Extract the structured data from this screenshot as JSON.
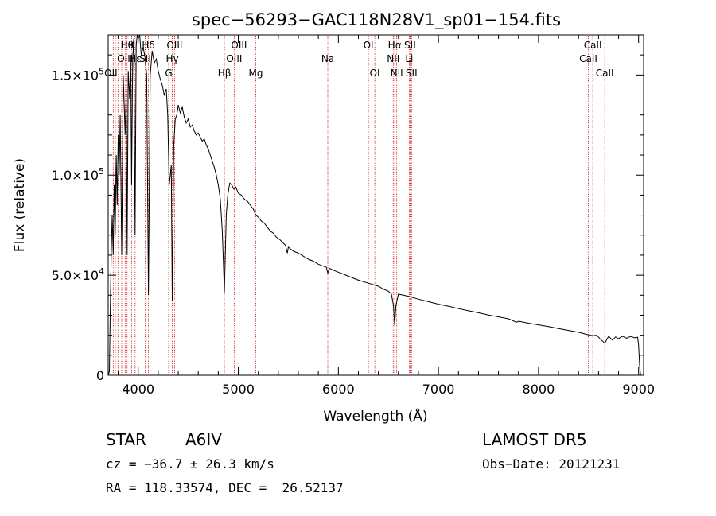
{
  "chart_data": {
    "type": "line",
    "title": "spec−56293−GAC118N28V1_sp01−154.fits",
    "xlabel": "Wavelength (Å)",
    "ylabel": "Flux (relative)",
    "xlim": [
      3700,
      9050
    ],
    "ylim": [
      0,
      170000
    ],
    "xticks": [
      {
        "value": 4000,
        "label": "4000"
      },
      {
        "value": 5000,
        "label": "5000"
      },
      {
        "value": 6000,
        "label": "6000"
      },
      {
        "value": 7000,
        "label": "7000"
      },
      {
        "value": 8000,
        "label": "8000"
      },
      {
        "value": 9000,
        "label": "9000"
      }
    ],
    "yticks": [
      {
        "value": 0,
        "mant": "0",
        "exp": ""
      },
      {
        "value": 50000,
        "mant": "5.0×10",
        "exp": "4"
      },
      {
        "value": 100000,
        "mant": "1.0×10",
        "exp": "5"
      },
      {
        "value": 150000,
        "mant": "1.5×10",
        "exp": "5"
      }
    ],
    "line_color": "#000000",
    "marker_color": "#cc0000",
    "lines": [
      {
        "wave": 3727,
        "label": "OII",
        "row": 3
      },
      {
        "wave": 3750,
        "label": "",
        "row": 0
      },
      {
        "wave": 3771,
        "label": "",
        "row": 0
      },
      {
        "wave": 3798,
        "label": "",
        "row": 0
      },
      {
        "wave": 3835,
        "label": "",
        "row": 0
      },
      {
        "wave": 3869,
        "label": "OIII",
        "row": 2
      },
      {
        "wave": 3889,
        "label": "Hθ",
        "row": 1
      },
      {
        "wave": 3934,
        "label": "K",
        "row": 1
      },
      {
        "wave": 3969,
        "label": "Hε",
        "row": 2
      },
      {
        "wave": 4070,
        "label": "SII",
        "row": 2
      },
      {
        "wave": 4102,
        "label": "Hδ",
        "row": 1
      },
      {
        "wave": 4304,
        "label": "G",
        "row": 3
      },
      {
        "wave": 4340,
        "label": "Hγ",
        "row": 2
      },
      {
        "wave": 4363,
        "label": "OIII",
        "row": 1
      },
      {
        "wave": 4861,
        "label": "Hβ",
        "row": 3
      },
      {
        "wave": 4959,
        "label": "OIII",
        "row": 2
      },
      {
        "wave": 5007,
        "label": "OIII",
        "row": 1
      },
      {
        "wave": 5175,
        "label": "Mg",
        "row": 3
      },
      {
        "wave": 5894,
        "label": "Na",
        "row": 2
      },
      {
        "wave": 6300,
        "label": "OI",
        "row": 1
      },
      {
        "wave": 6364,
        "label": "OI",
        "row": 3
      },
      {
        "wave": 6548,
        "label": "NII",
        "row": 2
      },
      {
        "wave": 6563,
        "label": "Hα",
        "row": 1
      },
      {
        "wave": 6583,
        "label": "NII",
        "row": 3
      },
      {
        "wave": 6708,
        "label": "Li",
        "row": 2
      },
      {
        "wave": 6716,
        "label": "SII",
        "row": 1
      },
      {
        "wave": 6731,
        "label": "SII",
        "row": 3
      },
      {
        "wave": 8498,
        "label": "CaII",
        "row": 2
      },
      {
        "wave": 8542,
        "label": "CaII",
        "row": 1
      },
      {
        "wave": 8662,
        "label": "CaII",
        "row": 3
      }
    ],
    "spectrum": [
      [
        3700,
        0
      ],
      [
        3712,
        2000
      ],
      [
        3720,
        30000
      ],
      [
        3730,
        60000
      ],
      [
        3740,
        80000
      ],
      [
        3750,
        60000
      ],
      [
        3760,
        95000
      ],
      [
        3770,
        70000
      ],
      [
        3780,
        110000
      ],
      [
        3790,
        85000
      ],
      [
        3800,
        120000
      ],
      [
        3810,
        100000
      ],
      [
        3820,
        130000
      ],
      [
        3835,
        60000
      ],
      [
        3850,
        150000
      ],
      [
        3869,
        120000
      ],
      [
        3880,
        140000
      ],
      [
        3889,
        60000
      ],
      [
        3900,
        152000
      ],
      [
        3915,
        138000
      ],
      [
        3925,
        160000
      ],
      [
        3934,
        95000
      ],
      [
        3945,
        158000
      ],
      [
        3955,
        168000
      ],
      [
        3969,
        70000
      ],
      [
        3980,
        165000
      ],
      [
        3990,
        172000
      ],
      [
        4000,
        168000
      ],
      [
        4015,
        170000
      ],
      [
        4030,
        160000
      ],
      [
        4050,
        164000
      ],
      [
        4070,
        158000
      ],
      [
        4085,
        150000
      ],
      [
        4102,
        40000
      ],
      [
        4120,
        150000
      ],
      [
        4140,
        162000
      ],
      [
        4160,
        156000
      ],
      [
        4180,
        158000
      ],
      [
        4200,
        152000
      ],
      [
        4220,
        148000
      ],
      [
        4240,
        145000
      ],
      [
        4260,
        140000
      ],
      [
        4280,
        143000
      ],
      [
        4295,
        130000
      ],
      [
        4310,
        95000
      ],
      [
        4330,
        105000
      ],
      [
        4340,
        37000
      ],
      [
        4355,
        115000
      ],
      [
        4370,
        128000
      ],
      [
        4385,
        130000
      ],
      [
        4400,
        135000
      ],
      [
        4420,
        131000
      ],
      [
        4440,
        134000
      ],
      [
        4460,
        129000
      ],
      [
        4480,
        126000
      ],
      [
        4500,
        128000
      ],
      [
        4520,
        124000
      ],
      [
        4540,
        125000
      ],
      [
        4560,
        122000
      ],
      [
        4580,
        120000
      ],
      [
        4600,
        121000
      ],
      [
        4620,
        119000
      ],
      [
        4640,
        117000
      ],
      [
        4660,
        118000
      ],
      [
        4680,
        115000
      ],
      [
        4700,
        113000
      ],
      [
        4720,
        110000
      ],
      [
        4740,
        107000
      ],
      [
        4760,
        104000
      ],
      [
        4780,
        100000
      ],
      [
        4800,
        95000
      ],
      [
        4820,
        88000
      ],
      [
        4840,
        72000
      ],
      [
        4852,
        55000
      ],
      [
        4861,
        41000
      ],
      [
        4870,
        60000
      ],
      [
        4880,
        80000
      ],
      [
        4895,
        90000
      ],
      [
        4915,
        96000
      ],
      [
        4935,
        95000
      ],
      [
        4955,
        93000
      ],
      [
        4975,
        94000
      ],
      [
        5000,
        91000
      ],
      [
        5030,
        90000
      ],
      [
        5060,
        88000
      ],
      [
        5090,
        87000
      ],
      [
        5120,
        85000
      ],
      [
        5150,
        83000
      ],
      [
        5175,
        80000
      ],
      [
        5200,
        79000
      ],
      [
        5230,
        77000
      ],
      [
        5260,
        76000
      ],
      [
        5290,
        74000
      ],
      [
        5320,
        72000
      ],
      [
        5350,
        71000
      ],
      [
        5380,
        69000
      ],
      [
        5410,
        68000
      ],
      [
        5440,
        66500
      ],
      [
        5470,
        65000
      ],
      [
        5490,
        61000
      ],
      [
        5500,
        64000
      ],
      [
        5550,
        62000
      ],
      [
        5600,
        61000
      ],
      [
        5650,
        59500
      ],
      [
        5700,
        58000
      ],
      [
        5750,
        57000
      ],
      [
        5800,
        55500
      ],
      [
        5850,
        54500
      ],
      [
        5880,
        54000
      ],
      [
        5894,
        51000
      ],
      [
        5910,
        53500
      ],
      [
        5950,
        52500
      ],
      [
        6000,
        51500
      ],
      [
        6100,
        49500
      ],
      [
        6200,
        47500
      ],
      [
        6300,
        46000
      ],
      [
        6400,
        44500
      ],
      [
        6450,
        43000
      ],
      [
        6500,
        42000
      ],
      [
        6530,
        40500
      ],
      [
        6550,
        35000
      ],
      [
        6563,
        25000
      ],
      [
        6575,
        35000
      ],
      [
        6600,
        40500
      ],
      [
        6650,
        40000
      ],
      [
        6700,
        39500
      ],
      [
        6800,
        38000
      ],
      [
        6900,
        36800
      ],
      [
        7000,
        35500
      ],
      [
        7100,
        34500
      ],
      [
        7200,
        33300
      ],
      [
        7300,
        32200
      ],
      [
        7400,
        31200
      ],
      [
        7500,
        30100
      ],
      [
        7600,
        29200
      ],
      [
        7700,
        28200
      ],
      [
        7780,
        26500
      ],
      [
        7800,
        27000
      ],
      [
        7900,
        26000
      ],
      [
        8000,
        25200
      ],
      [
        8100,
        24300
      ],
      [
        8200,
        23300
      ],
      [
        8300,
        22400
      ],
      [
        8400,
        21500
      ],
      [
        8498,
        20200
      ],
      [
        8542,
        19800
      ],
      [
        8580,
        20000
      ],
      [
        8620,
        18000
      ],
      [
        8662,
        16000
      ],
      [
        8700,
        19500
      ],
      [
        8740,
        17500
      ],
      [
        8770,
        19200
      ],
      [
        8800,
        18300
      ],
      [
        8840,
        19500
      ],
      [
        8880,
        18500
      ],
      [
        8920,
        19400
      ],
      [
        8960,
        18700
      ],
      [
        8990,
        19000
      ],
      [
        9000,
        15000
      ],
      [
        9010,
        5000
      ],
      [
        9020,
        0
      ],
      [
        9040,
        0
      ]
    ]
  },
  "info": {
    "object_type": "STAR",
    "subclass": "A6IV",
    "survey": "LAMOST DR5",
    "cz": "cz = −36.7 ± 26.3 km/s",
    "obs_date": "Obs−Date: 20121231",
    "coords": "RA = 118.33574, DEC =  26.52137"
  }
}
